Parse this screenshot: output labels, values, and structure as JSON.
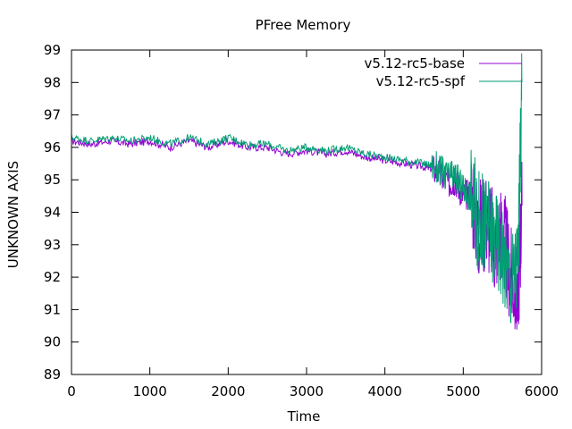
{
  "chart_data": {
    "type": "line",
    "title": "PFree Memory",
    "xlabel": "Time",
    "ylabel": "UNKNOWN AXIS",
    "xlim": [
      0,
      6000
    ],
    "ylim": [
      89,
      99
    ],
    "xticks": [
      0,
      1000,
      2000,
      3000,
      4000,
      5000,
      6000
    ],
    "yticks": [
      89,
      90,
      91,
      92,
      93,
      94,
      95,
      96,
      97,
      98,
      99
    ],
    "grid": false,
    "legend_position": "top-right",
    "series": [
      {
        "name": "v5.12-rc5-base",
        "color": "#9400d3",
        "x": [
          0,
          250,
          500,
          750,
          1000,
          1250,
          1500,
          1750,
          2000,
          2250,
          2500,
          2750,
          3000,
          3250,
          3500,
          3750,
          4000,
          4250,
          4500,
          4650,
          4800,
          4900,
          5000,
          5100,
          5200,
          5300,
          5400,
          5500,
          5600,
          5700,
          5750
        ],
        "values": [
          96.2,
          96.1,
          96.2,
          96.1,
          96.2,
          96.0,
          96.2,
          96.0,
          96.2,
          96.0,
          96.0,
          95.8,
          95.9,
          95.8,
          95.9,
          95.7,
          95.6,
          95.5,
          95.4,
          95.3,
          94.9,
          95.0,
          94.5,
          94.6,
          93.5,
          93.8,
          93.0,
          93.5,
          92.0,
          91.5,
          94.2
        ]
      },
      {
        "name": "v5.12-rc5-spf",
        "color": "#009e73",
        "x": [
          0,
          250,
          500,
          750,
          1000,
          1250,
          1500,
          1750,
          2000,
          2250,
          2500,
          2750,
          3000,
          3250,
          3500,
          3750,
          4000,
          4250,
          4500,
          4650,
          4800,
          4900,
          5000,
          5100,
          5200,
          5300,
          5400,
          5500,
          5600,
          5700,
          5750
        ],
        "values": [
          96.3,
          96.2,
          96.3,
          96.2,
          96.3,
          96.1,
          96.3,
          96.1,
          96.3,
          96.1,
          96.1,
          95.9,
          96.0,
          95.9,
          96.0,
          95.8,
          95.7,
          95.6,
          95.5,
          95.4,
          95.1,
          95.1,
          94.7,
          94.5,
          93.7,
          93.6,
          93.2,
          92.8,
          91.8,
          92.5,
          98.1
        ]
      }
    ]
  }
}
